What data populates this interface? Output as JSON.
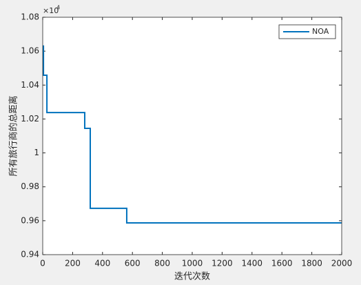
{
  "chart_data": {
    "type": "line",
    "x_label": "迭代次数",
    "y_label": "所有旅行商的总距离",
    "y_scale_label": "×10",
    "y_scale_exponent": "4",
    "x": [
      0,
      5,
      5,
      28,
      28,
      281,
      281,
      318,
      318,
      562,
      562,
      2000
    ],
    "series": [
      {
        "name": "NOA",
        "color": "#0072bd",
        "values": [
          1.063,
          1.063,
          1.0458,
          1.0458,
          1.0238,
          1.0238,
          1.0145,
          1.0145,
          0.9673,
          0.9673,
          0.9587,
          0.9587
        ]
      }
    ],
    "xlim": [
      0,
      2000
    ],
    "xticks": [
      0,
      200,
      400,
      600,
      800,
      1000,
      1200,
      1400,
      1600,
      1800,
      2000
    ],
    "ylim": [
      0.94,
      1.08
    ],
    "yticks": [
      0.94,
      0.96,
      0.98,
      1,
      1.02,
      1.04,
      1.06,
      1.08
    ],
    "legend": "top-right",
    "grid": false
  }
}
